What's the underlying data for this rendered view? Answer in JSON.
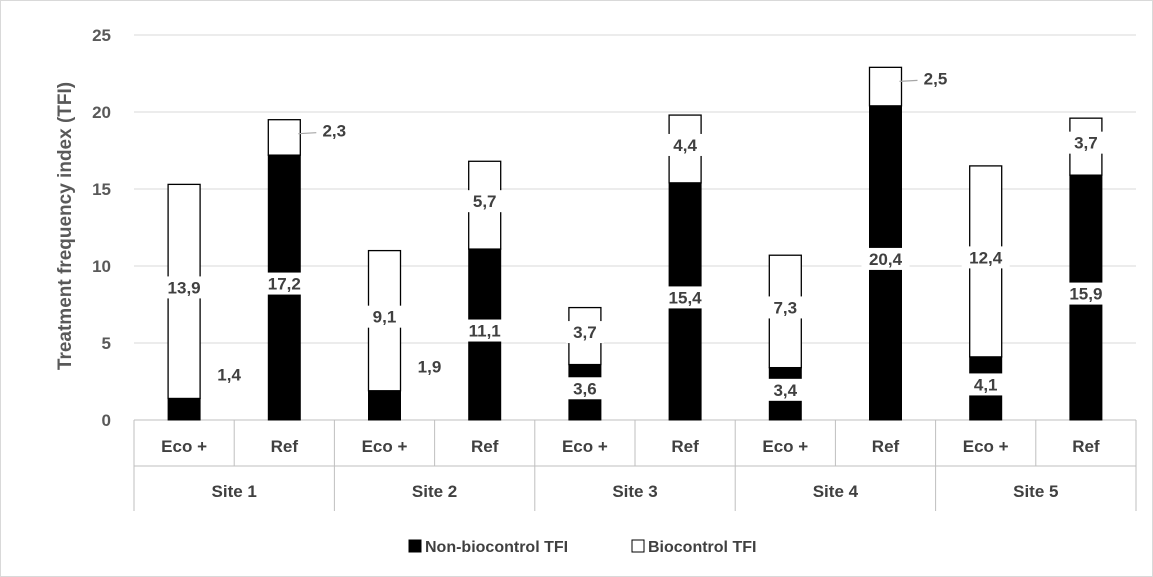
{
  "chart_data": {
    "type": "bar",
    "stacked": true,
    "ylabel": "Treatment frequency index (TFI)",
    "ylim": [
      0,
      25
    ],
    "yticks": [
      "0",
      "5",
      "10",
      "15",
      "20",
      "25"
    ],
    "grid": true,
    "legend": "bottom",
    "groups": [
      "Site 1",
      "Site 2",
      "Site 3",
      "Site 4",
      "Site 5"
    ],
    "categories": [
      "Eco +",
      "Ref",
      "Eco +",
      "Ref",
      "Eco +",
      "Ref",
      "Eco +",
      "Ref",
      "Eco +",
      "Ref"
    ],
    "series": [
      {
        "name": "Non-biocontrol TFI",
        "color": "#000000",
        "values": [
          1.4,
          17.2,
          1.9,
          11.1,
          3.6,
          15.4,
          3.4,
          20.4,
          4.1,
          15.9
        ],
        "labels": [
          "1,4",
          "17,2",
          "1,9",
          "11,1",
          "3,6",
          "15,4",
          "3,4",
          "20,4",
          "4,1",
          "15,9"
        ]
      },
      {
        "name": "Biocontrol TFI",
        "color": "#ffffff",
        "values": [
          13.9,
          2.3,
          9.1,
          5.7,
          3.7,
          4.4,
          7.3,
          2.5,
          12.4,
          3.7
        ],
        "labels": [
          "13,9",
          "2,3",
          "9,1",
          "5,7",
          "3,7",
          "4,4",
          "7,3",
          "2,5",
          "12,4",
          "3,7"
        ]
      }
    ]
  }
}
